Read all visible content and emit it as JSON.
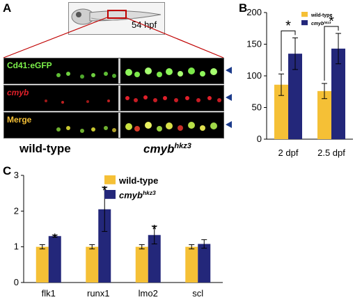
{
  "panels": {
    "a": "A",
    "b": "B",
    "c": "C"
  },
  "panel_a": {
    "stage": "54 hpf",
    "rows": [
      "Cd41:eGFP",
      "cmyb",
      "Merge"
    ],
    "genotypes": {
      "wt": "wild-type",
      "mut_base": "cmyb",
      "mut_sup": "hkz3"
    }
  },
  "colors": {
    "wildtype": "#f5c036",
    "mutant": "#23277a",
    "gfp": "#7cf04a",
    "red": "#e0202a",
    "merge": "#f5c036"
  },
  "chart_data": [
    {
      "id": "B",
      "type": "bar",
      "categories": [
        "2 dpf",
        "2.5 dpf"
      ],
      "series": [
        {
          "name": "wild-type",
          "values": [
            86,
            76
          ],
          "errors": [
            17,
            12
          ]
        },
        {
          "name": "cmyb",
          "name_sup": "hkz3",
          "values": [
            135,
            143
          ],
          "errors": [
            25,
            24
          ]
        }
      ],
      "significance": [
        "*",
        "*"
      ],
      "ylim": [
        0,
        200
      ],
      "yticks": [
        "0",
        "50",
        "100",
        "150",
        "200"
      ],
      "legend": "top-left"
    },
    {
      "id": "C",
      "type": "bar",
      "categories": [
        "flk1",
        "runx1",
        "lmo2",
        "scl"
      ],
      "series": [
        {
          "name": "wild-type",
          "values": [
            1.0,
            1.0,
            1.0,
            1.0
          ],
          "errors": [
            0.06,
            0.06,
            0.06,
            0.06
          ]
        },
        {
          "name": "cmyb",
          "name_sup": "hkz3",
          "values": [
            1.3,
            2.05,
            1.33,
            1.08
          ],
          "errors": [
            0.03,
            0.62,
            0.25,
            0.12
          ]
        }
      ],
      "significance": [
        "*",
        "*",
        "*",
        ""
      ],
      "ylim": [
        0,
        3
      ],
      "yticks": [
        "0",
        "1",
        "2",
        "3"
      ],
      "legend": "top-left"
    }
  ]
}
